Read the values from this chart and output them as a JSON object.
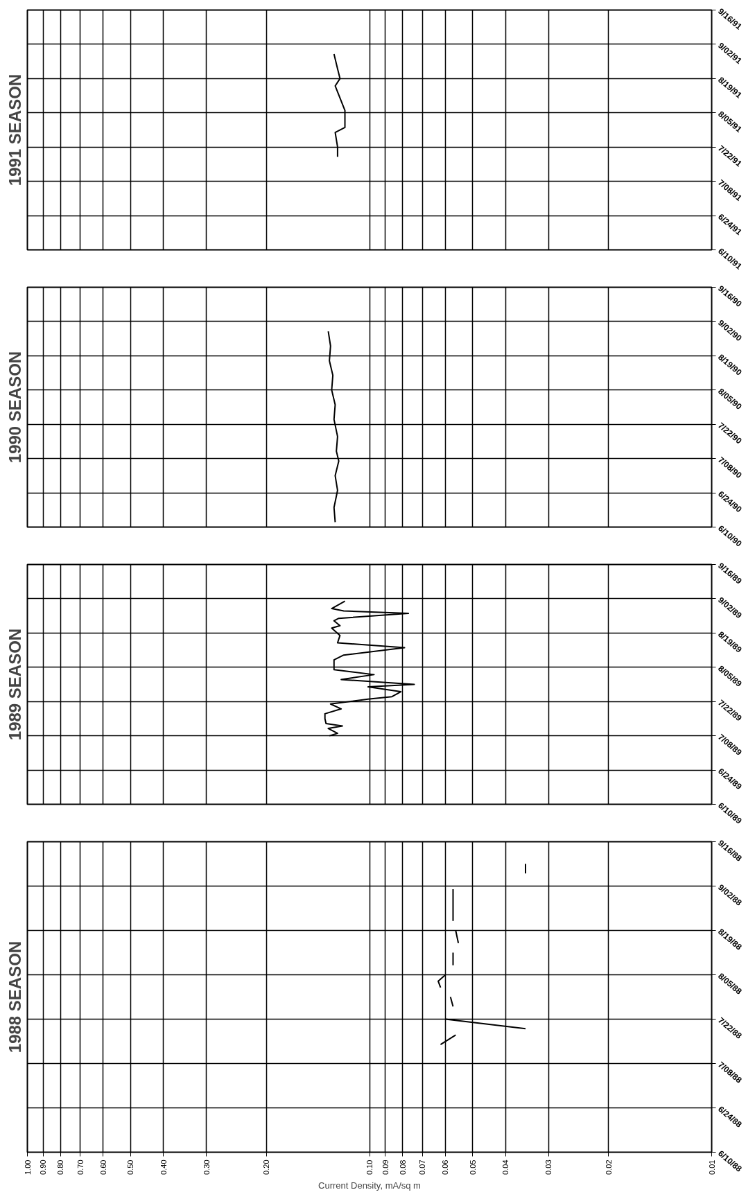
{
  "chart_data": [
    {
      "type": "line",
      "title": "1991 SEASON",
      "orientation": "horizontal",
      "log": "x",
      "grid": true,
      "tick_labels": "y",
      "color": "#000000",
      "x": [
        "1991-07-18",
        "1991-07-22",
        "1991-07-28",
        "1991-07-30",
        "1991-08-06",
        "1991-08-16",
        "1991-08-19",
        "1991-08-23",
        "1991-08-29"
      ],
      "values": [
        0.124,
        0.124,
        0.126,
        0.118,
        0.118,
        0.126,
        0.122,
        0.124,
        0.127
      ],
      "xlim": [
        1.0,
        0.01
      ],
      "xticks": [
        1.0,
        0.9,
        0.8,
        0.7,
        0.6,
        0.5,
        0.4,
        0.3,
        0.2,
        0.1,
        0.09,
        0.08,
        0.07,
        0.06,
        0.05,
        0.04,
        0.03,
        0.02,
        0.01
      ],
      "ylim": [
        "1991-06-10",
        "1991-09-16"
      ],
      "yticks": [
        {
          "value": "1991-06-10",
          "label": "6/10/91"
        },
        {
          "value": "1991-06-24",
          "label": "6/24/91"
        },
        {
          "value": "1991-07-08",
          "label": "7/08/91"
        },
        {
          "value": "1991-07-22",
          "label": "7/22/91"
        },
        {
          "value": "1991-08-05",
          "label": "8/05/91"
        },
        {
          "value": "1991-08-19",
          "label": "8/19/91"
        },
        {
          "value": "1991-09-02",
          "label": "9/02/91"
        },
        {
          "value": "1991-09-16",
          "label": "9/16/91"
        }
      ]
    },
    {
      "type": "line",
      "title": "1990 SEASON",
      "orientation": "horizontal",
      "log": "x",
      "grid": true,
      "tick_labels": "y",
      "color": "#000000",
      "x": [
        "1990-06-12",
        "1990-06-18",
        "1990-06-25",
        "1990-07-01",
        "1990-07-07",
        "1990-07-11",
        "1990-07-17",
        "1990-07-24",
        "1990-07-30",
        "1990-08-05",
        "1990-08-11",
        "1990-08-17",
        "1990-08-23",
        "1990-08-29"
      ],
      "values": [
        0.126,
        0.127,
        0.124,
        0.126,
        0.123,
        0.125,
        0.124,
        0.127,
        0.126,
        0.129,
        0.128,
        0.131,
        0.13,
        0.132
      ],
      "xlim": [
        1.0,
        0.01
      ],
      "xticks": [
        1.0,
        0.9,
        0.8,
        0.7,
        0.6,
        0.5,
        0.4,
        0.3,
        0.2,
        0.1,
        0.09,
        0.08,
        0.07,
        0.06,
        0.05,
        0.04,
        0.03,
        0.02,
        0.01
      ],
      "ylim": [
        "1990-06-10",
        "1990-09-16"
      ],
      "yticks": [
        {
          "value": "1990-06-10",
          "label": "6/10/90"
        },
        {
          "value": "1990-06-24",
          "label": "6/24/90"
        },
        {
          "value": "1990-07-08",
          "label": "7/08/90"
        },
        {
          "value": "1990-07-22",
          "label": "7/22/90"
        },
        {
          "value": "1990-08-05",
          "label": "8/05/90"
        },
        {
          "value": "1990-08-19",
          "label": "8/19/90"
        },
        {
          "value": "1990-09-02",
          "label": "9/02/90"
        },
        {
          "value": "1990-09-16",
          "label": "9/16/90"
        }
      ]
    },
    {
      "type": "line",
      "title": "1989 SEASON",
      "orientation": "horizontal",
      "log": "x",
      "grid": true,
      "tick_labels": "y",
      "color": "#000000",
      "x": [
        "1989-07-08",
        "1989-07-09",
        "1989-07-11",
        "1989-07-12",
        "1989-07-13",
        "1989-07-15",
        "1989-07-17",
        "1989-07-19",
        "1989-07-21",
        "1989-07-23",
        "1989-07-24",
        "1989-07-26",
        "1989-07-28",
        "1989-07-29",
        "1989-07-31",
        "1989-08-02",
        "1989-08-04",
        "1989-08-08",
        "1989-08-10",
        "1989-08-13",
        "1989-08-15",
        "1989-08-18",
        "1989-08-21",
        "1989-08-22",
        "1989-08-24",
        "1989-08-25",
        "1989-08-27",
        "1989-08-28",
        "1989-08-29",
        "1989-09-01"
      ],
      "values": [
        0.131,
        0.124,
        0.132,
        0.12,
        0.134,
        0.135,
        0.135,
        0.121,
        0.13,
        0.101,
        0.086,
        0.081,
        0.101,
        0.074,
        0.121,
        0.097,
        0.127,
        0.127,
        0.119,
        0.079,
        0.124,
        0.122,
        0.129,
        0.122,
        0.127,
        0.123,
        0.077,
        0.119,
        0.129,
        0.118
      ],
      "xlim": [
        1.0,
        0.01
      ],
      "xticks": [
        1.0,
        0.9,
        0.8,
        0.7,
        0.6,
        0.5,
        0.4,
        0.3,
        0.2,
        0.1,
        0.09,
        0.08,
        0.07,
        0.06,
        0.05,
        0.04,
        0.03,
        0.02,
        0.01
      ],
      "ylim": [
        "1989-06-10",
        "1989-09-16"
      ],
      "yticks": [
        {
          "value": "1989-06-10",
          "label": "6/10/89"
        },
        {
          "value": "1989-06-24",
          "label": "6/24/89"
        },
        {
          "value": "1989-07-08",
          "label": "7/08/89"
        },
        {
          "value": "1989-07-22",
          "label": "7/22/89"
        },
        {
          "value": "1989-08-05",
          "label": "8/05/89"
        },
        {
          "value": "1989-08-19",
          "label": "8/19/89"
        },
        {
          "value": "1989-09-02",
          "label": "9/02/89"
        },
        {
          "value": "1989-09-16",
          "label": "9/16/89"
        }
      ]
    },
    {
      "type": "line",
      "title": "1988 SEASON",
      "xlabel": "Current Density, mA/sq m",
      "orientation": "horizontal",
      "log": "x",
      "grid": true,
      "color": "#000000",
      "x": [
        "1988-07-14",
        "1988-07-17",
        "1988-07-18",
        "1988-07-19",
        "1988-07-22",
        "1988-07-24",
        "1988-07-26",
        "1988-07-29",
        "1988-07-30",
        "1988-08-01",
        "1988-08-03",
        "1988-08-05",
        "1988-08-06",
        "1988-08-08",
        "1988-08-12",
        "1988-08-13",
        "1988-08-15",
        "1988-08-19",
        "1988-08-20",
        "1988-08-22",
        "1988-09-01",
        "1988-09-03",
        "1988-09-06",
        "1988-09-09"
      ],
      "values": [
        0.062,
        0.056,
        null,
        0.035,
        0.06,
        null,
        0.057,
        0.058,
        null,
        0.062,
        0.063,
        0.06,
        null,
        0.057,
        0.057,
        null,
        0.055,
        0.056,
        null,
        0.057,
        0.057,
        null,
        0.035,
        0.035
      ],
      "xlim": [
        1.0,
        0.01
      ],
      "xticks": [
        {
          "value": 1.0,
          "label": "1.00"
        },
        {
          "value": 0.9,
          "label": "0.90"
        },
        {
          "value": 0.8,
          "label": "0.80"
        },
        {
          "value": 0.7,
          "label": "0.70"
        },
        {
          "value": 0.6,
          "label": "0.60"
        },
        {
          "value": 0.5,
          "label": "0.50"
        },
        {
          "value": 0.4,
          "label": "0.40"
        },
        {
          "value": 0.3,
          "label": "0.30"
        },
        {
          "value": 0.2,
          "label": "0.20"
        },
        {
          "value": 0.1,
          "label": "0.10"
        },
        {
          "value": 0.09,
          "label": "0.09"
        },
        {
          "value": 0.08,
          "label": "0.08"
        },
        {
          "value": 0.07,
          "label": "0.07"
        },
        {
          "value": 0.06,
          "label": "0.06"
        },
        {
          "value": 0.05,
          "label": "0.05"
        },
        {
          "value": 0.04,
          "label": "0.04"
        },
        {
          "value": 0.03,
          "label": "0.03"
        },
        {
          "value": 0.02,
          "label": "0.02"
        },
        {
          "value": 0.01,
          "label": "0.01"
        }
      ],
      "ylim": [
        "1988-06-10",
        "1988-09-16"
      ],
      "yticks": [
        {
          "value": "1988-06-10",
          "label": "6/10/88"
        },
        {
          "value": "1988-06-24",
          "label": "6/24/88"
        },
        {
          "value": "1988-07-08",
          "label": "7/08/88"
        },
        {
          "value": "1988-07-22",
          "label": "7/22/88"
        },
        {
          "value": "1988-08-05",
          "label": "8/05/88"
        },
        {
          "value": "1988-08-19",
          "label": "8/19/88"
        },
        {
          "value": "1988-09-02",
          "label": "9/02/88"
        },
        {
          "value": "1988-09-16",
          "label": "9/16/88"
        }
      ]
    }
  ]
}
